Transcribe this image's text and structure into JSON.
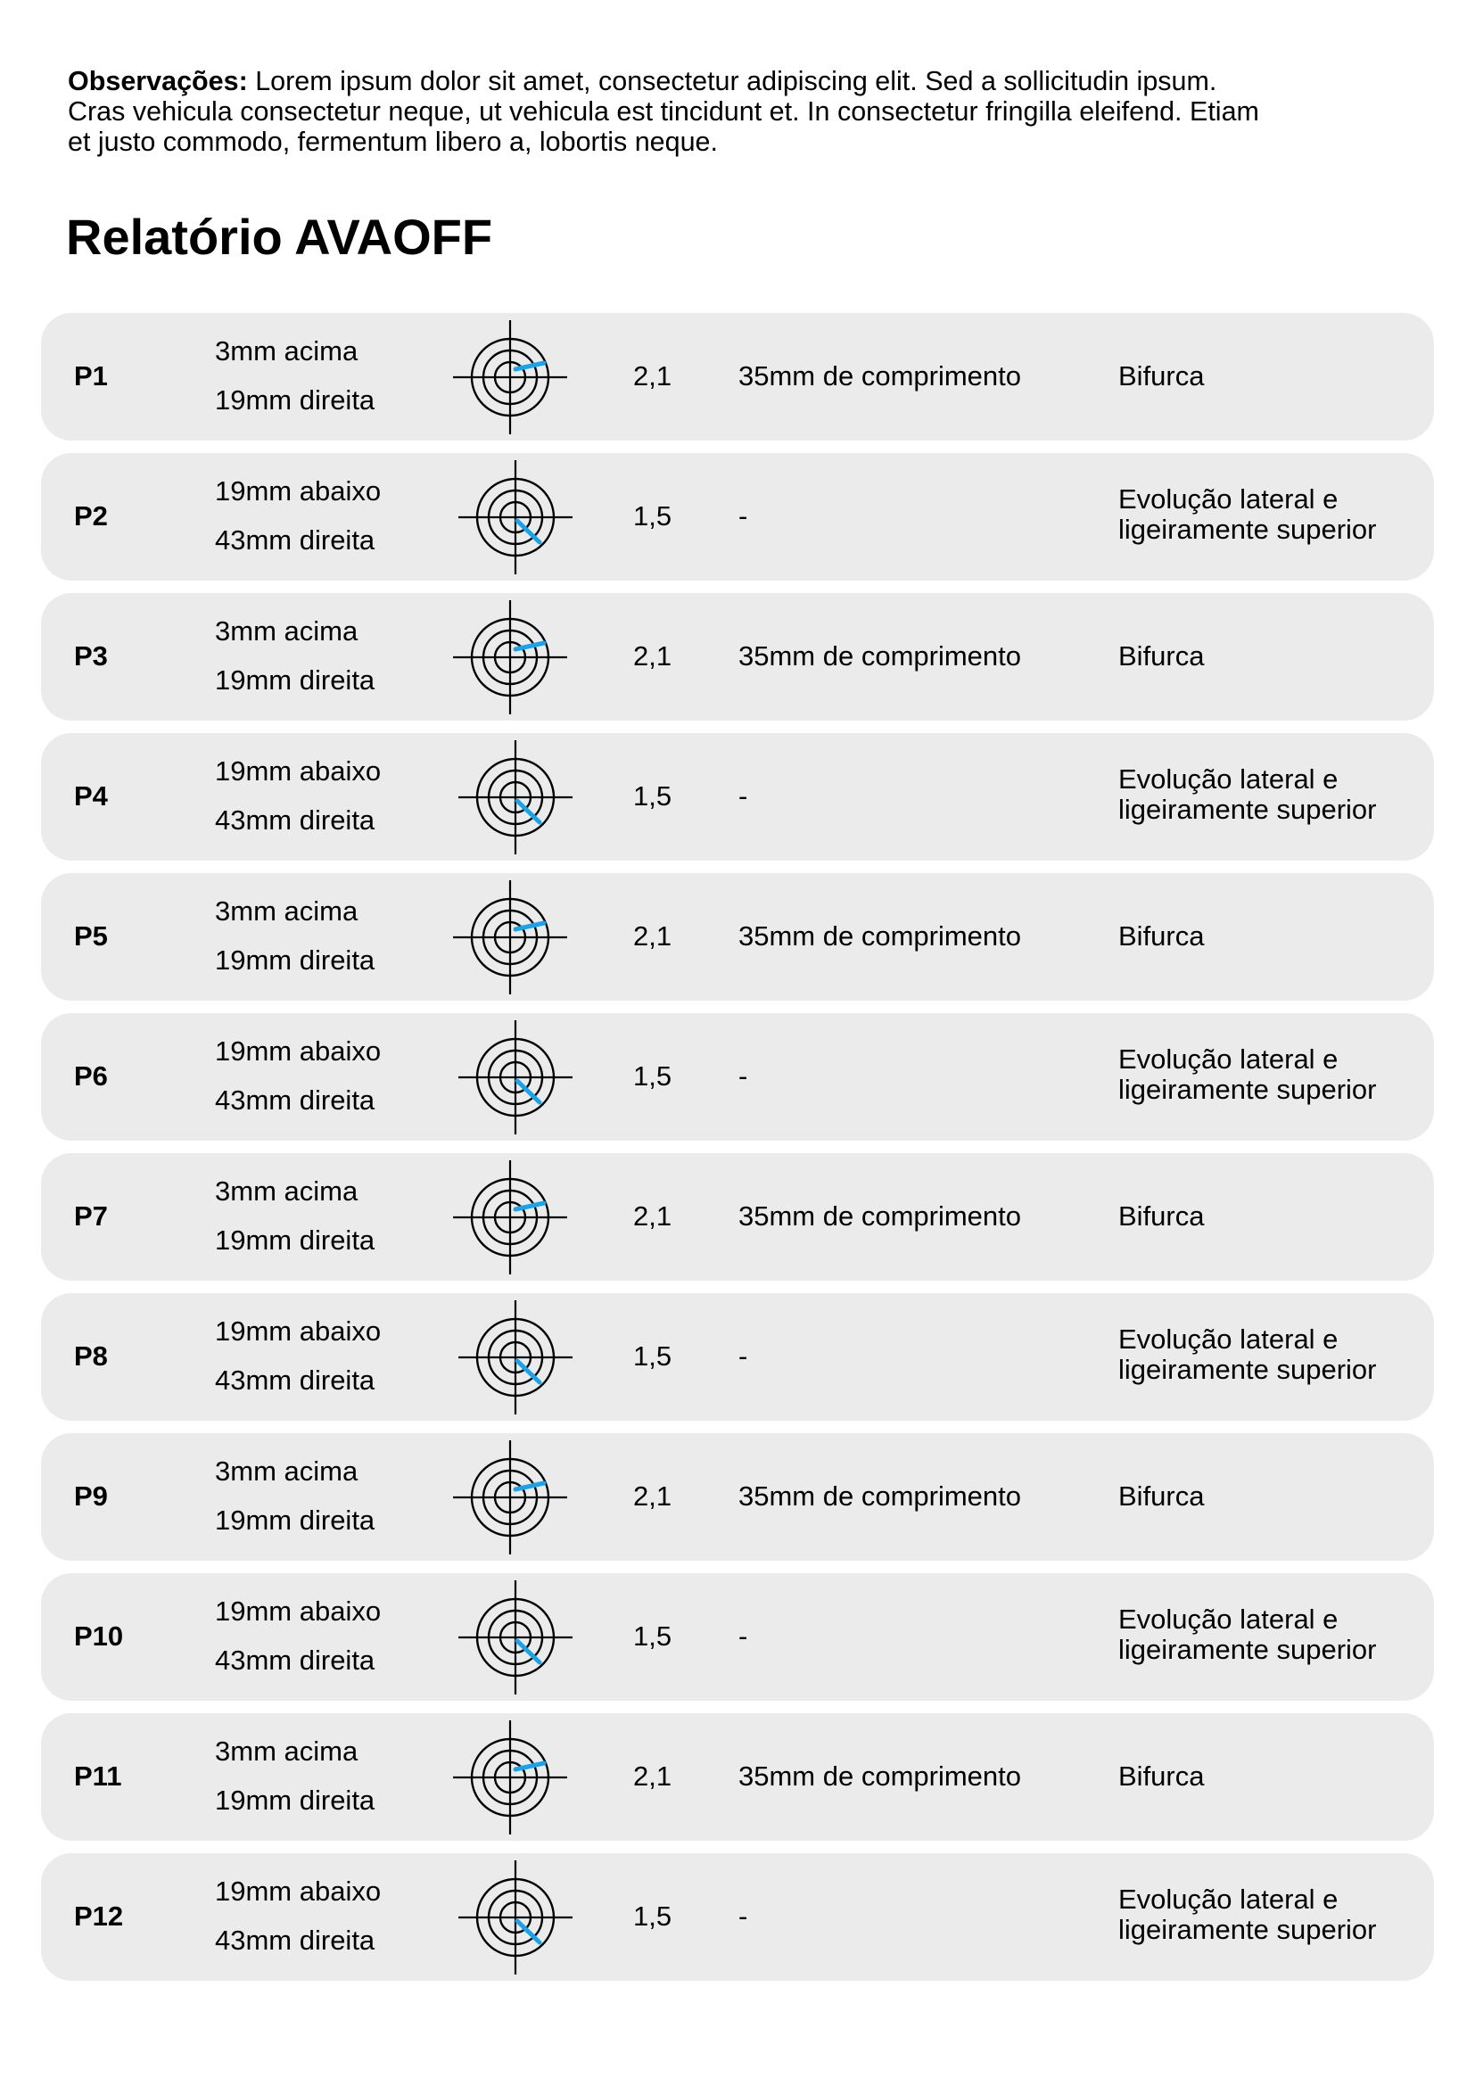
{
  "notes": {
    "label": "Observações:",
    "lines": [
      " Lorem ipsum dolor sit amet, consectetur adipiscing elit. Sed a sollicitudin ipsum.",
      "Cras vehicula consectetur neque, ut vehicula est tincidunt et. In consectetur fringilla eleifend. Etiam",
      "et justo commodo, fermentum libero a, lobortis neque."
    ]
  },
  "title": "Relatório AVAOFF",
  "colors": {
    "row_bg": "#ebebeb",
    "marker": "#1aa3e8",
    "text": "#000000"
  },
  "rows": [
    {
      "id": "P1",
      "pos_vertical": "3mm acima",
      "pos_horizontal": "19mm direita",
      "value": "2,1",
      "length": "35mm de comprimento",
      "note_lines": [
        "Bifurca"
      ],
      "icon": "crosshair-target-icon",
      "marker": "up-right"
    },
    {
      "id": "P2",
      "pos_vertical": "19mm abaixo",
      "pos_horizontal": "43mm direita",
      "value": "1,5",
      "length": "-",
      "note_lines": [
        "Evolução lateral e",
        "ligeiramente superior"
      ],
      "icon": "crosshair-target-icon",
      "marker": "down-right"
    },
    {
      "id": "P3",
      "pos_vertical": "3mm acima",
      "pos_horizontal": "19mm direita",
      "value": "2,1",
      "length": "35mm de comprimento",
      "note_lines": [
        "Bifurca"
      ],
      "icon": "crosshair-target-icon",
      "marker": "up-right"
    },
    {
      "id": "P4",
      "pos_vertical": "19mm abaixo",
      "pos_horizontal": "43mm direita",
      "value": "1,5",
      "length": "-",
      "note_lines": [
        "Evolução lateral e",
        "ligeiramente superior"
      ],
      "icon": "crosshair-target-icon",
      "marker": "down-right"
    },
    {
      "id": "P5",
      "pos_vertical": "3mm acima",
      "pos_horizontal": "19mm direita",
      "value": "2,1",
      "length": "35mm de comprimento",
      "note_lines": [
        "Bifurca"
      ],
      "icon": "crosshair-target-icon",
      "marker": "up-right"
    },
    {
      "id": "P6",
      "pos_vertical": "19mm abaixo",
      "pos_horizontal": "43mm direita",
      "value": "1,5",
      "length": "-",
      "note_lines": [
        "Evolução lateral e",
        "ligeiramente superior"
      ],
      "icon": "crosshair-target-icon",
      "marker": "down-right"
    },
    {
      "id": "P7",
      "pos_vertical": "3mm acima",
      "pos_horizontal": "19mm direita",
      "value": "2,1",
      "length": "35mm de comprimento",
      "note_lines": [
        "Bifurca"
      ],
      "icon": "crosshair-target-icon",
      "marker": "up-right"
    },
    {
      "id": "P8",
      "pos_vertical": "19mm abaixo",
      "pos_horizontal": "43mm direita",
      "value": "1,5",
      "length": "-",
      "note_lines": [
        "Evolução lateral e",
        "ligeiramente superior"
      ],
      "icon": "crosshair-target-icon",
      "marker": "down-right"
    },
    {
      "id": "P9",
      "pos_vertical": "3mm acima",
      "pos_horizontal": "19mm direita",
      "value": "2,1",
      "length": "35mm de comprimento",
      "note_lines": [
        "Bifurca"
      ],
      "icon": "crosshair-target-icon",
      "marker": "up-right"
    },
    {
      "id": "P10",
      "pos_vertical": "19mm abaixo",
      "pos_horizontal": "43mm direita",
      "value": "1,5",
      "length": "-",
      "note_lines": [
        "Evolução lateral e",
        "ligeiramente superior"
      ],
      "icon": "crosshair-target-icon",
      "marker": "down-right"
    },
    {
      "id": "P11",
      "pos_vertical": "3mm acima",
      "pos_horizontal": "19mm direita",
      "value": "2,1",
      "length": "35mm de comprimento",
      "note_lines": [
        "Bifurca"
      ],
      "icon": "crosshair-target-icon",
      "marker": "up-right"
    },
    {
      "id": "P12",
      "pos_vertical": "19mm abaixo",
      "pos_horizontal": "43mm direita",
      "value": "1,5",
      "length": "-",
      "note_lines": [
        "Evolução lateral e",
        "ligeiramente superior"
      ],
      "icon": "crosshair-target-icon",
      "marker": "down-right"
    }
  ]
}
